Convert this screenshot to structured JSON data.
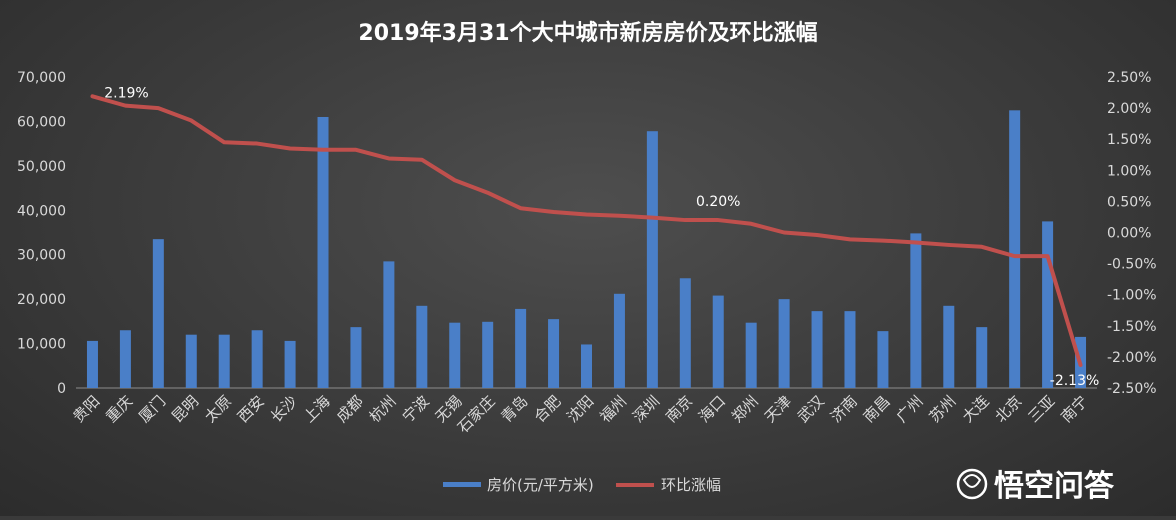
{
  "chart_data": {
    "type": "bar+line",
    "title": "2019年3月31个大中城市新房房价及环比涨幅",
    "categories": [
      "贵阳",
      "重庆",
      "厦门",
      "昆明",
      "太原",
      "西安",
      "长沙",
      "上海",
      "成都",
      "杭州",
      "宁波",
      "无锡",
      "石家庄",
      "青岛",
      "合肥",
      "沈阳",
      "福州",
      "深圳",
      "南京",
      "海口",
      "郑州",
      "天津",
      "武汉",
      "济南",
      "南昌",
      "广州",
      "苏州",
      "大连",
      "北京",
      "三亚",
      "南宁"
    ],
    "series": [
      {
        "name": "房价(元/平方米)",
        "type": "bar",
        "axis": "left",
        "color": "#4a7fc8",
        "values": [
          10600,
          13000,
          33500,
          12000,
          12000,
          13000,
          10600,
          61000,
          13700,
          28500,
          18500,
          14700,
          14900,
          17800,
          15500,
          9800,
          21200,
          57800,
          24700,
          20800,
          14700,
          20000,
          17300,
          17300,
          12800,
          34800,
          18500,
          13700,
          62500,
          37500,
          11500
        ]
      },
      {
        "name": "环比涨幅",
        "type": "line",
        "axis": "right",
        "color": "#c0504d",
        "values": [
          2.19,
          2.04,
          2.0,
          1.8,
          1.45,
          1.43,
          1.35,
          1.33,
          1.33,
          1.19,
          1.17,
          0.84,
          0.64,
          0.39,
          0.33,
          0.29,
          0.27,
          0.24,
          0.2,
          0.2,
          0.14,
          0.0,
          -0.04,
          -0.11,
          -0.13,
          -0.16,
          -0.2,
          -0.23,
          -0.38,
          -0.38,
          -2.13
        ]
      }
    ],
    "annotations": [
      {
        "text": "2.19%",
        "index": 0
      },
      {
        "text": "0.20%",
        "index": 19
      },
      {
        "text": "-2.13%",
        "index": 30
      }
    ],
    "ylim_left": [
      0,
      70000
    ],
    "yticks_left": [
      "0",
      "10,000",
      "20,000",
      "30,000",
      "40,000",
      "50,000",
      "60,000",
      "70,000"
    ],
    "ylim_right": [
      -2.5,
      2.5
    ],
    "yticks_right": [
      "-2.50%",
      "-2.00%",
      "-1.50%",
      "-1.00%",
      "-0.50%",
      "0.00%",
      "0.50%",
      "1.00%",
      "1.50%",
      "2.00%",
      "2.50%"
    ],
    "legend_position": "bottom",
    "grid": false
  },
  "watermark": "悟空问答"
}
